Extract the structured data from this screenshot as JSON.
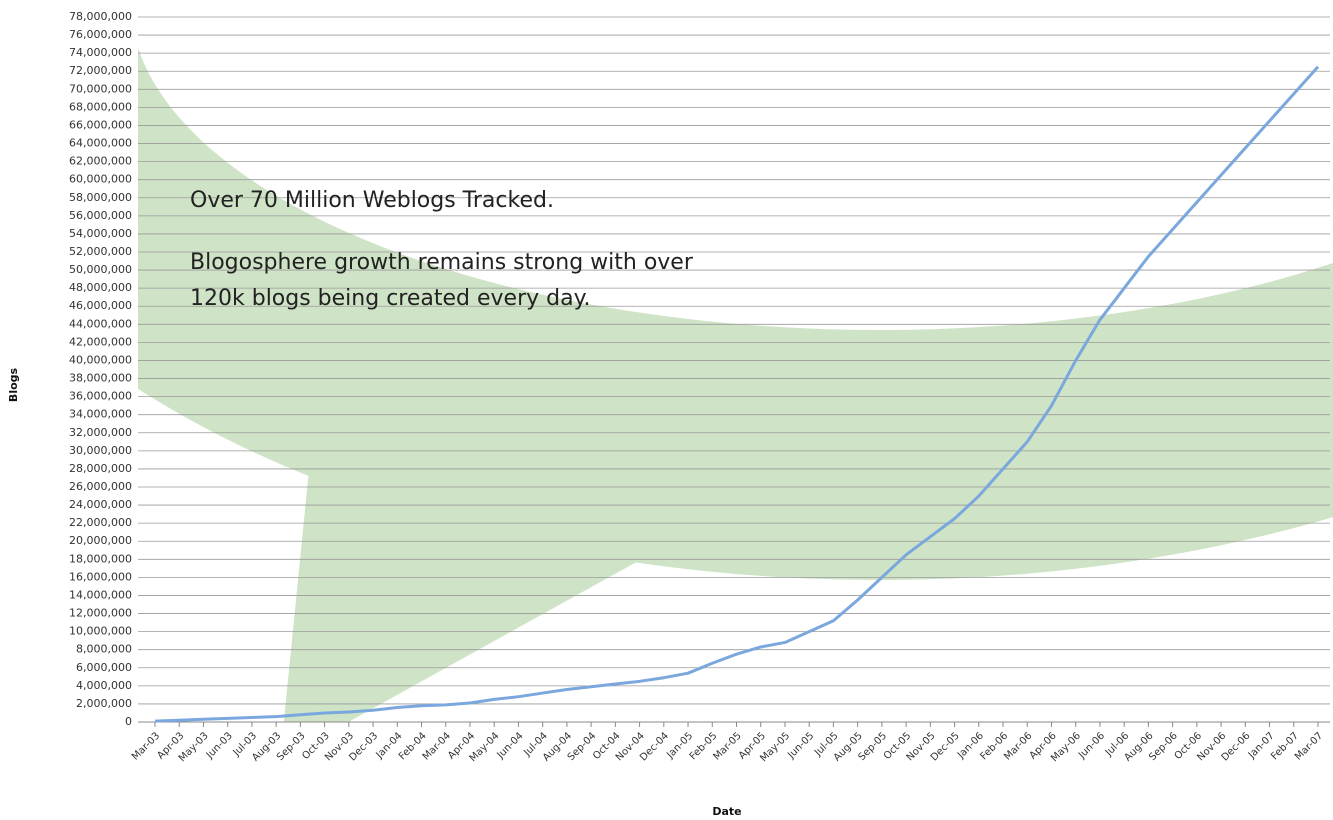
{
  "chart_data": {
    "type": "line",
    "x_label": "Date",
    "y_label": "Blogs",
    "annotations": [
      "Over 70 Million Weblogs Tracked.",
      "Blogosphere growth remains strong with over",
      "120k blogs being created every day."
    ],
    "categories": [
      "Mar-03",
      "Apr-03",
      "May-03",
      "Jun-03",
      "Jul-03",
      "Aug-03",
      "Sep-03",
      "Oct-03",
      "Nov-03",
      "Dec-03",
      "Jan-04",
      "Feb-04",
      "Mar-04",
      "Apr-04",
      "May-04",
      "Jun-04",
      "Jul-04",
      "Aug-04",
      "Sep-04",
      "Oct-04",
      "Nov-04",
      "Dec-04",
      "Jan-05",
      "Feb-05",
      "Mar-05",
      "Apr-05",
      "May-05",
      "Jun-05",
      "Jul-05",
      "Aug-05",
      "Sep-05",
      "Oct-05",
      "Nov-05",
      "Dec-05",
      "Jan-06",
      "Feb-06",
      "Mar-06",
      "Apr-06",
      "May-06",
      "Jun-06",
      "Jul-06",
      "Aug-06",
      "Sep-06",
      "Oct-06",
      "Nov-06",
      "Dec-06",
      "Jan-07",
      "Feb-07",
      "Mar-07"
    ],
    "series": [
      {
        "name": "Blogs",
        "color": "#7aa7dd",
        "values": [
          100000,
          200000,
          300000,
          400000,
          500000,
          600000,
          800000,
          1000000,
          1100000,
          1300000,
          1600000,
          1800000,
          1900000,
          2100000,
          2500000,
          2800000,
          3200000,
          3600000,
          3900000,
          4200000,
          4500000,
          4900000,
          5400000,
          6500000,
          7500000,
          8300000,
          8800000,
          10000000,
          11200000,
          13500000,
          16000000,
          18500000,
          20500000,
          22500000,
          25000000,
          28000000,
          31000000,
          35000000,
          40000000,
          44500000,
          48000000,
          51500000,
          54500000,
          57500000,
          60500000,
          63500000,
          66500000,
          69500000,
          72500000
        ]
      }
    ],
    "ylim": [
      0,
      78000000
    ],
    "yticks": [
      0,
      {
        "value": 2000000,
        "label": "2,000,000"
      },
      {
        "value": 4000000,
        "label": "4,000,000"
      },
      {
        "value": 6000000,
        "label": "6,000,000"
      },
      {
        "value": 8000000,
        "label": "8,000,000"
      },
      {
        "value": 10000000,
        "label": "10,000,000"
      },
      {
        "value": 12000000,
        "label": "12,000,000"
      },
      {
        "value": 14000000,
        "label": "14,000,000"
      },
      {
        "value": 16000000,
        "label": "16,000,000"
      },
      {
        "value": 18000000,
        "label": "18,000,000"
      },
      {
        "value": 20000000,
        "label": "20,000,000"
      },
      {
        "value": 22000000,
        "label": "22,000,000"
      },
      {
        "value": 24000000,
        "label": "24,000,000"
      },
      {
        "value": 26000000,
        "label": "26,000,000"
      },
      {
        "value": 28000000,
        "label": "28,000,000"
      },
      {
        "value": 30000000,
        "label": "30,000,000"
      },
      {
        "value": 32000000,
        "label": "32,000,000"
      },
      {
        "value": 34000000,
        "label": "34,000,000"
      },
      {
        "value": 36000000,
        "label": "36,000,000"
      },
      {
        "value": 38000000,
        "label": "38,000,000"
      },
      {
        "value": 40000000,
        "label": "40,000,000"
      },
      {
        "value": 42000000,
        "label": "42,000,000"
      },
      {
        "value": 44000000,
        "label": "44,000,000"
      },
      {
        "value": 46000000,
        "label": "46,000,000"
      },
      {
        "value": 48000000,
        "label": "48,000,000"
      },
      {
        "value": 50000000,
        "label": "50,000,000"
      },
      {
        "value": 52000000,
        "label": "52,000,000"
      },
      {
        "value": 54000000,
        "label": "54,000,000"
      },
      {
        "value": 56000000,
        "label": "56,000,000"
      },
      {
        "value": 58000000,
        "label": "58,000,000"
      },
      {
        "value": 60000000,
        "label": "60,000,000"
      },
      {
        "value": 62000000,
        "label": "62,000,000"
      },
      {
        "value": 64000000,
        "label": "64,000,000"
      },
      {
        "value": 66000000,
        "label": "66,000,000"
      },
      {
        "value": 68000000,
        "label": "68,000,000"
      },
      {
        "value": 70000000,
        "label": "70,000,000"
      },
      {
        "value": 72000000,
        "label": "72,000,000"
      },
      {
        "value": 74000000,
        "label": "74,000,000"
      },
      {
        "value": 76000000,
        "label": "76,000,000"
      },
      {
        "value": 78000000,
        "label": "78,000,000"
      }
    ],
    "grid": true
  }
}
